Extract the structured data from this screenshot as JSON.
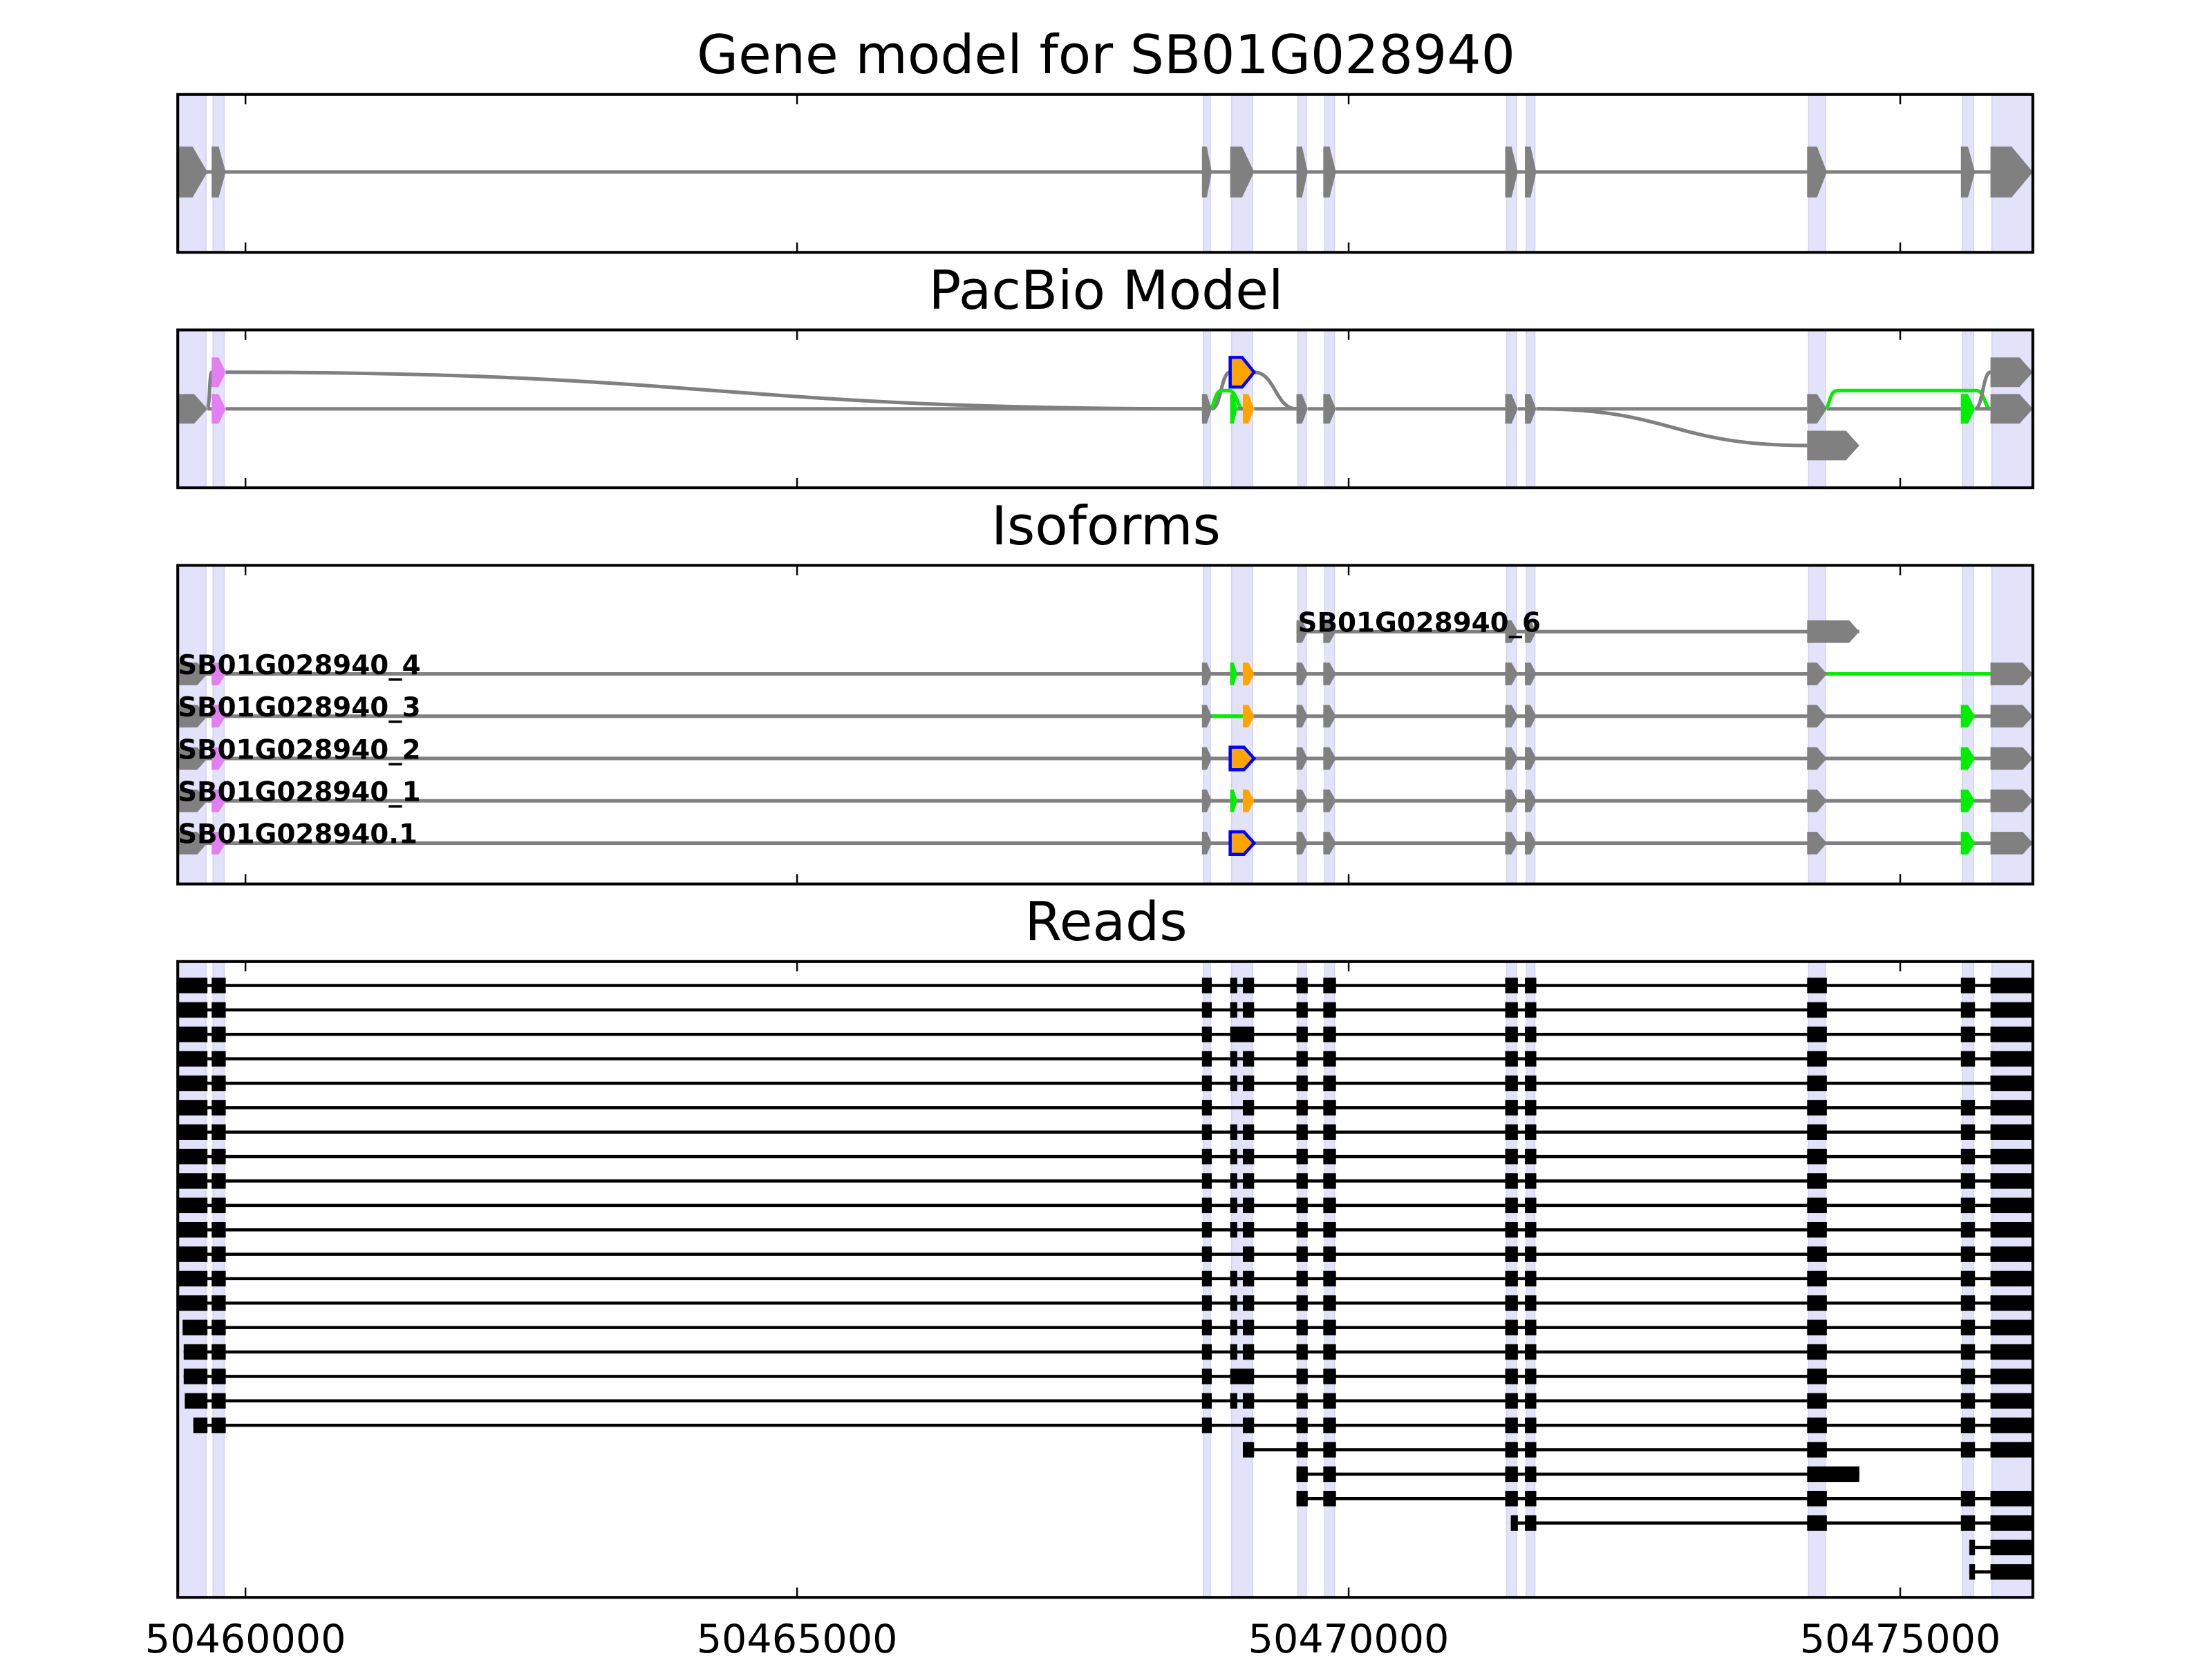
{
  "chart_data": {
    "type": "gene-track",
    "xlim": [
      50459386,
      50476202
    ],
    "xticks": [
      50460000,
      50465000,
      50470000,
      50475000
    ],
    "xtick_labels": [
      "50460000",
      "50465000",
      "50470000",
      "50475000"
    ],
    "colors": {
      "exon": "#808080",
      "read": "#000000",
      "shade": "#e2e2fb",
      "violet": "#e27ff2",
      "green": "#00ee00",
      "orange": "#ffa500",
      "blue": "#0000ff"
    },
    "exons": [
      [
        50459386,
        50459655
      ],
      [
        50459693,
        50459821
      ],
      [
        50468670,
        50468759
      ],
      [
        50468926,
        50469143
      ],
      [
        50468926,
        50468990
      ],
      [
        50469041,
        50469143
      ],
      [
        50469527,
        50469629
      ],
      [
        50469770,
        50469885
      ],
      [
        50471419,
        50471534
      ],
      [
        50471598,
        50471701
      ],
      [
        50474156,
        50474335
      ],
      [
        50474156,
        50474629
      ],
      [
        50475550,
        50475678
      ],
      [
        50475818,
        50476202
      ]
    ],
    "shaded_exons": [
      0,
      1,
      2,
      3,
      6,
      7,
      8,
      9,
      10,
      12,
      13
    ],
    "panels": [
      {
        "title": "Gene model for SB01G028940",
        "kind": "gene_model",
        "blocks": [
          0,
          1,
          2,
          3,
          6,
          7,
          8,
          9,
          10,
          12,
          13
        ]
      },
      {
        "title": "PacBio Model",
        "kind": "pacbio",
        "nodes": [
          {
            "exon": 0,
            "level": 0,
            "color": "exon"
          },
          {
            "exon": 1,
            "level": 0,
            "color": "violet"
          },
          {
            "exon": 1,
            "level": 1,
            "color": "violet"
          },
          {
            "exon": 2,
            "level": 0,
            "color": "exon"
          },
          {
            "exon": 3,
            "level": 1,
            "color": "orange",
            "outline": "blue"
          },
          {
            "exon": 4,
            "level": 0,
            "color": "green"
          },
          {
            "exon": 5,
            "level": 0,
            "color": "orange"
          },
          {
            "exon": 6,
            "level": 0,
            "color": "exon"
          },
          {
            "exon": 7,
            "level": 0,
            "color": "exon"
          },
          {
            "exon": 8,
            "level": 0,
            "color": "exon"
          },
          {
            "exon": 9,
            "level": 0,
            "color": "exon"
          },
          {
            "exon": 10,
            "level": 0,
            "color": "exon"
          },
          {
            "exon": 11,
            "level": -1,
            "color": "exon"
          },
          {
            "exon": 12,
            "level": 0,
            "color": "green"
          },
          {
            "exon": 13,
            "level": 1,
            "color": "exon"
          },
          {
            "exon": 13,
            "level": 0,
            "color": "exon"
          }
        ],
        "edges": [
          [
            0,
            1,
            "exon"
          ],
          [
            0,
            2,
            "exon"
          ],
          [
            1,
            3,
            "exon"
          ],
          [
            2,
            3,
            "exon"
          ],
          [
            3,
            4,
            "exon"
          ],
          [
            3,
            6,
            "green"
          ],
          [
            5,
            6,
            "exon"
          ],
          [
            4,
            7,
            "exon"
          ],
          [
            6,
            7,
            "exon"
          ],
          [
            7,
            8,
            "exon"
          ],
          [
            8,
            9,
            "exon"
          ],
          [
            9,
            10,
            "exon"
          ],
          [
            10,
            11,
            "exon"
          ],
          [
            10,
            12,
            "exon"
          ],
          [
            11,
            13,
            "exon"
          ],
          [
            11,
            15,
            "green"
          ],
          [
            13,
            15,
            "exon"
          ],
          [
            13,
            14,
            "exon"
          ]
        ]
      },
      {
        "title": "Isoforms",
        "kind": "isoforms",
        "isoforms": [
          {
            "name": "SB01G028940_6",
            "blocks": [
              [
                6,
                "exon"
              ],
              [
                7,
                "exon"
              ],
              [
                8,
                "exon"
              ],
              [
                9,
                "exon"
              ],
              [
                11,
                "exon"
              ]
            ],
            "green_introns": []
          },
          {
            "name": "SB01G028940_4",
            "blocks": [
              [
                0,
                "exon"
              ],
              [
                1,
                "violet"
              ],
              [
                2,
                "exon"
              ],
              [
                4,
                "green"
              ],
              [
                5,
                "orange"
              ],
              [
                6,
                "exon"
              ],
              [
                7,
                "exon"
              ],
              [
                8,
                "exon"
              ],
              [
                9,
                "exon"
              ],
              [
                10,
                "exon"
              ],
              [
                13,
                "exon"
              ]
            ],
            "green_introns": [
              [
                10,
                13
              ]
            ]
          },
          {
            "name": "SB01G028940_3",
            "blocks": [
              [
                0,
                "exon"
              ],
              [
                1,
                "violet"
              ],
              [
                2,
                "exon"
              ],
              [
                5,
                "orange"
              ],
              [
                6,
                "exon"
              ],
              [
                7,
                "exon"
              ],
              [
                8,
                "exon"
              ],
              [
                9,
                "exon"
              ],
              [
                10,
                "exon"
              ],
              [
                12,
                "green"
              ],
              [
                13,
                "exon"
              ]
            ],
            "green_introns": [
              [
                2,
                5
              ]
            ]
          },
          {
            "name": "SB01G028940_2",
            "blocks": [
              [
                0,
                "exon"
              ],
              [
                1,
                "violet"
              ],
              [
                2,
                "exon"
              ],
              [
                3,
                "orange",
                "blue"
              ],
              [
                6,
                "exon"
              ],
              [
                7,
                "exon"
              ],
              [
                8,
                "exon"
              ],
              [
                9,
                "exon"
              ],
              [
                10,
                "exon"
              ],
              [
                12,
                "green"
              ],
              [
                13,
                "exon"
              ]
            ],
            "green_introns": []
          },
          {
            "name": "SB01G028940_1",
            "blocks": [
              [
                0,
                "exon"
              ],
              [
                1,
                "violet"
              ],
              [
                2,
                "exon"
              ],
              [
                4,
                "green"
              ],
              [
                5,
                "orange"
              ],
              [
                6,
                "exon"
              ],
              [
                7,
                "exon"
              ],
              [
                8,
                "exon"
              ],
              [
                9,
                "exon"
              ],
              [
                10,
                "exon"
              ],
              [
                12,
                "green"
              ],
              [
                13,
                "exon"
              ]
            ],
            "green_introns": []
          },
          {
            "name": "SB01G028940.1",
            "blocks": [
              [
                0,
                "exon"
              ],
              [
                1,
                "violet"
              ],
              [
                2,
                "exon"
              ],
              [
                3,
                "orange",
                "blue"
              ],
              [
                6,
                "exon"
              ],
              [
                7,
                "exon"
              ],
              [
                8,
                "exon"
              ],
              [
                9,
                "exon"
              ],
              [
                10,
                "exon"
              ],
              [
                12,
                "green"
              ],
              [
                13,
                "exon"
              ]
            ],
            "green_introns": []
          }
        ]
      },
      {
        "title": "Reads",
        "kind": "reads",
        "reads": [
          {
            "blocks": [
              0,
              1,
              2,
              4,
              5,
              6,
              7,
              8,
              9,
              10,
              12,
              13
            ]
          },
          {
            "blocks": [
              0,
              1,
              2,
              4,
              5,
              6,
              7,
              8,
              9,
              10,
              12,
              13
            ]
          },
          {
            "blocks": [
              0,
              1,
              2,
              3,
              6,
              7,
              8,
              9,
              10,
              12,
              13
            ]
          },
          {
            "blocks": [
              0,
              1,
              2,
              4,
              5,
              6,
              7,
              8,
              9,
              10,
              12,
              13
            ]
          },
          {
            "blocks": [
              0,
              1,
              2,
              4,
              5,
              6,
              7,
              8,
              9,
              10,
              13
            ]
          },
          {
            "blocks": [
              0,
              1,
              2,
              5,
              6,
              7,
              8,
              9,
              10,
              12,
              13
            ]
          },
          {
            "blocks": [
              0,
              1,
              2,
              4,
              5,
              6,
              7,
              8,
              9,
              10,
              12,
              13
            ]
          },
          {
            "blocks": [
              0,
              1,
              2,
              4,
              5,
              6,
              7,
              8,
              9,
              10,
              12,
              13
            ]
          },
          {
            "blocks": [
              0,
              1,
              2,
              4,
              5,
              6,
              7,
              8,
              9,
              10,
              12,
              13
            ]
          },
          {
            "blocks": [
              0,
              1,
              2,
              4,
              5,
              6,
              7,
              8,
              9,
              10,
              12,
              13
            ]
          },
          {
            "blocks": [
              0,
              1,
              2,
              4,
              5,
              6,
              7,
              8,
              9,
              10,
              12,
              13
            ]
          },
          {
            "blocks": [
              0,
              1,
              2,
              5,
              6,
              7,
              8,
              9,
              10,
              12,
              13
            ]
          },
          {
            "blocks": [
              0,
              1,
              2,
              4,
              5,
              6,
              7,
              8,
              9,
              10,
              12,
              13
            ]
          },
          {
            "blocks": [
              0,
              1,
              2,
              4,
              5,
              6,
              7,
              8,
              9,
              10,
              12,
              13
            ]
          },
          {
            "blocks": [
              0,
              1,
              2,
              4,
              5,
              6,
              7,
              8,
              9,
              10,
              12,
              13
            ],
            "start": 50459430
          },
          {
            "blocks": [
              0,
              1,
              2,
              4,
              5,
              6,
              7,
              8,
              9,
              10,
              12,
              13
            ],
            "start": 50459440
          },
          {
            "blocks": [
              0,
              1,
              2,
              3,
              6,
              7,
              8,
              9,
              10,
              12,
              13
            ],
            "start": 50459440
          },
          {
            "blocks": [
              0,
              1,
              2,
              4,
              5,
              6,
              7,
              8,
              9,
              10,
              12,
              13
            ],
            "start": 50459450
          },
          {
            "blocks": [
              0,
              1,
              2,
              5,
              6,
              7,
              8,
              9,
              10,
              12,
              13
            ],
            "start": 50459527
          },
          {
            "blocks": [
              5,
              6,
              7,
              8,
              9,
              10,
              12,
              13
            ]
          },
          {
            "blocks": [
              6,
              7,
              8,
              9,
              11
            ]
          },
          {
            "blocks": [
              6,
              7,
              8,
              9,
              10,
              12,
              13
            ]
          },
          {
            "blocks": [
              8,
              9,
              10,
              12,
              13
            ],
            "start": 50471470
          },
          {
            "blocks": [
              12,
              13
            ],
            "start": 50475626
          },
          {
            "blocks": [
              12,
              13
            ],
            "start": 50475626
          }
        ]
      }
    ]
  }
}
